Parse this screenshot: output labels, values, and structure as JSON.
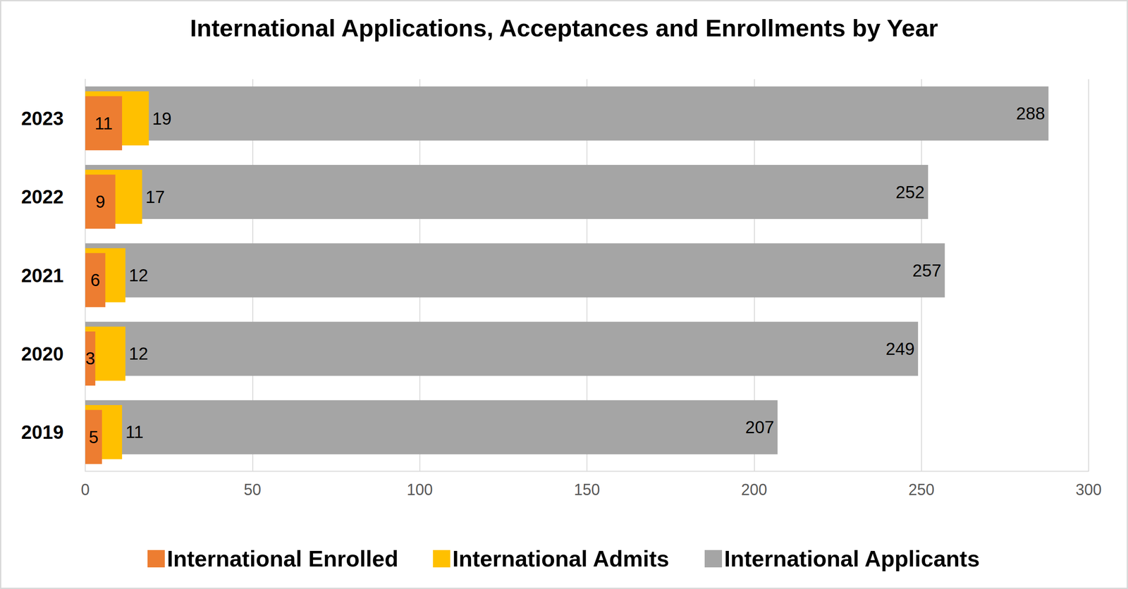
{
  "chart_data": {
    "type": "bar",
    "title": "International Applications, Acceptances and Enrollments by Year",
    "orientation": "horizontal",
    "categories": [
      "2019",
      "2020",
      "2021",
      "2022",
      "2023"
    ],
    "series": [
      {
        "name": "International Enrolled",
        "color": "#ED7D31",
        "values": [
          5,
          3,
          6,
          9,
          11
        ]
      },
      {
        "name": "International Admits",
        "color": "#FFC000",
        "values": [
          11,
          12,
          12,
          17,
          19
        ]
      },
      {
        "name": "International Applicants",
        "color": "#A5A5A5",
        "values": [
          207,
          249,
          257,
          252,
          288
        ]
      }
    ],
    "xlim": [
      0,
      300
    ],
    "xticks": [
      0,
      50,
      100,
      150,
      200,
      250,
      300
    ],
    "grid": true,
    "legend": "bottom",
    "data_labels": true
  }
}
